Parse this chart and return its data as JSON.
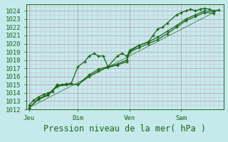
{
  "xlabel": "Pression niveau de la mer( hPa )",
  "bg_color": "#c5eaec",
  "plot_bg_color": "#c5eaec",
  "grid_color_h": "#b8a8b8",
  "grid_color_v": "#b8a8b8",
  "grid_minor_color": "#cdc0cd",
  "line_color": "#1a6618",
  "marker_color": "#1a6618",
  "ylim": [
    1012,
    1024.8
  ],
  "xlim": [
    0,
    10.5
  ],
  "yticks": [
    1012,
    1013,
    1014,
    1015,
    1016,
    1017,
    1018,
    1019,
    1020,
    1021,
    1022,
    1023,
    1024
  ],
  "xtick_labels": [
    "Jeu",
    "Dim",
    "Ven",
    "Sam"
  ],
  "xtick_positions": [
    0.15,
    2.75,
    5.5,
    8.25
  ],
  "vline_positions": [
    0.15,
    2.75,
    5.5,
    8.25
  ],
  "xlabel_fontsize": 8.5,
  "tick_fontsize": 6.5,
  "line_width": 1.0,
  "series1_x": [
    0.15,
    0.4,
    0.65,
    0.9,
    1.15,
    1.4,
    1.65,
    1.9,
    2.15,
    2.4,
    2.75,
    3.1,
    3.35,
    3.6,
    3.85,
    4.1,
    4.35,
    4.85,
    5.1,
    5.35,
    5.5,
    6.0,
    6.5,
    6.75,
    7.0,
    7.25,
    7.5,
    8.0,
    8.25,
    8.5,
    8.75,
    9.0,
    9.25,
    9.5,
    9.75,
    10.0,
    10.25
  ],
  "series1_y": [
    1012.5,
    1013.1,
    1013.5,
    1013.8,
    1014.0,
    1014.2,
    1015.0,
    1015.0,
    1015.1,
    1015.2,
    1017.2,
    1017.8,
    1018.5,
    1018.8,
    1018.5,
    1018.5,
    1017.2,
    1018.5,
    1018.8,
    1018.5,
    1019.0,
    1019.8,
    1020.2,
    1021.0,
    1021.8,
    1022.0,
    1022.5,
    1023.5,
    1023.8,
    1024.0,
    1024.2,
    1024.0,
    1024.2,
    1024.3,
    1024.2,
    1024.0,
    1024.1
  ],
  "series2_x": [
    0.15,
    0.65,
    1.15,
    1.65,
    2.15,
    2.75,
    3.35,
    3.85,
    4.35,
    4.85,
    5.35,
    5.5,
    6.0,
    6.5,
    7.0,
    7.5,
    8.0,
    8.5,
    9.0,
    9.5,
    10.0
  ],
  "series2_y": [
    1012.2,
    1013.3,
    1013.8,
    1014.9,
    1015.0,
    1015.0,
    1016.2,
    1016.9,
    1017.2,
    1017.5,
    1018.0,
    1019.2,
    1019.8,
    1020.2,
    1020.8,
    1021.5,
    1022.2,
    1023.0,
    1023.5,
    1024.0,
    1023.9
  ],
  "series3_x": [
    0.15,
    0.65,
    1.15,
    1.65,
    2.15,
    2.75,
    3.35,
    3.85,
    4.35,
    4.85,
    5.35,
    5.5,
    6.0,
    6.5,
    7.0,
    7.5,
    8.0,
    8.5,
    9.0,
    9.5,
    10.0
  ],
  "series3_y": [
    1012.2,
    1013.2,
    1013.7,
    1014.8,
    1015.0,
    1015.0,
    1016.0,
    1016.7,
    1017.1,
    1017.4,
    1017.8,
    1019.0,
    1019.5,
    1020.0,
    1020.5,
    1021.2,
    1022.0,
    1022.8,
    1023.3,
    1023.8,
    1023.7
  ],
  "trend_x": [
    0.15,
    10.25
  ],
  "trend_y": [
    1012.2,
    1024.1
  ]
}
